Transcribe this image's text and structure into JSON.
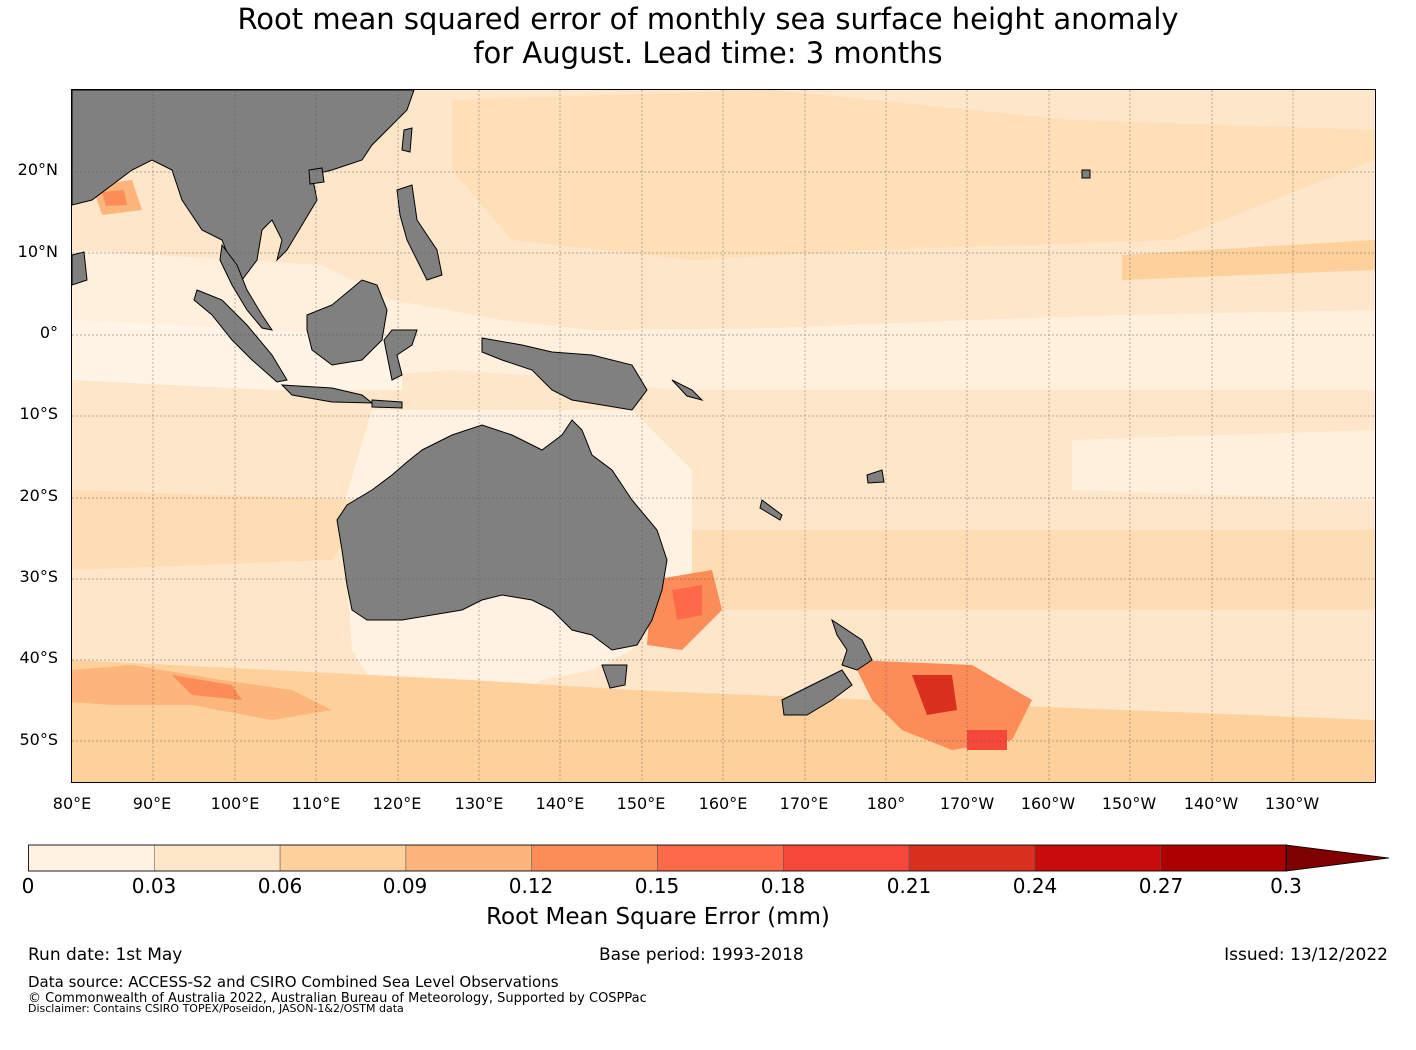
{
  "title": {
    "line1": "Root mean squared error of monthly sea surface height anomaly",
    "line2": "for August. Lead time: 3 months"
  },
  "map": {
    "lat_labels": [
      "20°N",
      "10°N",
      "0°",
      "10°S",
      "20°S",
      "30°S",
      "40°S",
      "50°S"
    ],
    "lon_labels": [
      "80°E",
      "90°E",
      "100°E",
      "110°E",
      "120°E",
      "130°E",
      "140°E",
      "150°E",
      "160°E",
      "170°E",
      "180°",
      "170°W",
      "160°W",
      "150°W",
      "140°W",
      "130°W"
    ],
    "land_color": "#808080",
    "ocean_base_color": "#fde6c9"
  },
  "colorbar": {
    "ticks": [
      "0",
      "0.03",
      "0.06",
      "0.09",
      "0.12",
      "0.15",
      "0.18",
      "0.21",
      "0.24",
      "0.27",
      "0.3"
    ],
    "colors": [
      "#fff2e2",
      "#fee6c9",
      "#fdd09c",
      "#fcb57a",
      "#fc8d59",
      "#fc6a4a",
      "#f5473a",
      "#d9301f",
      "#c80c0c",
      "#ad0000",
      "#7f0000"
    ],
    "label": "Root Mean Square Error (mm)",
    "extend": "max"
  },
  "footer": {
    "run_date": "Run date: 1st May",
    "base_period": "Base period: 1993-2018",
    "issued": "Issued: 13/12/2022",
    "data_source": "Data source: ACCESS-S2 and CSIRO Combined Sea Level Observations",
    "copyright": "© Commonwealth of Australia 2022, Australian Bureau of Meteorology, Supported by COSPPac",
    "disclaimer": "Disclaimer: Contains CSIRO TOPEX/Poseidon, JASON-1&2/OSTM data"
  }
}
